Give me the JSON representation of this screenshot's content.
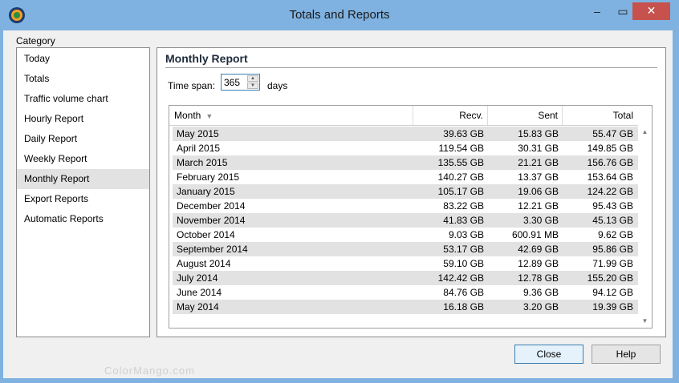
{
  "window": {
    "title": "Totals and Reports",
    "minimize": "–",
    "maximize": "▭",
    "close": "✕"
  },
  "category": {
    "label": "Category",
    "items": [
      {
        "label": "Today"
      },
      {
        "label": "Totals"
      },
      {
        "label": "Traffic volume chart"
      },
      {
        "label": "Hourly Report"
      },
      {
        "label": "Daily Report"
      },
      {
        "label": "Weekly Report"
      },
      {
        "label": "Monthly Report",
        "selected": true
      },
      {
        "label": "Export Reports"
      },
      {
        "label": "Automatic Reports"
      }
    ]
  },
  "report": {
    "title": "Monthly Report",
    "timespan_label": "Time span:",
    "timespan_value": "365",
    "timespan_unit": "days",
    "columns": {
      "month": "Month",
      "recv": "Recv.",
      "sent": "Sent",
      "total": "Total"
    },
    "rows": [
      {
        "month": "May 2015",
        "recv": "39.63 GB",
        "sent": "15.83 GB",
        "total": "55.47 GB"
      },
      {
        "month": "April 2015",
        "recv": "119.54 GB",
        "sent": "30.31 GB",
        "total": "149.85 GB"
      },
      {
        "month": "March 2015",
        "recv": "135.55 GB",
        "sent": "21.21 GB",
        "total": "156.76 GB"
      },
      {
        "month": "February 2015",
        "recv": "140.27 GB",
        "sent": "13.37 GB",
        "total": "153.64 GB"
      },
      {
        "month": "January 2015",
        "recv": "105.17 GB",
        "sent": "19.06 GB",
        "total": "124.22 GB"
      },
      {
        "month": "December 2014",
        "recv": "83.22 GB",
        "sent": "12.21 GB",
        "total": "95.43 GB"
      },
      {
        "month": "November 2014",
        "recv": "41.83 GB",
        "sent": "3.30 GB",
        "total": "45.13 GB"
      },
      {
        "month": "October 2014",
        "recv": "9.03 GB",
        "sent": "600.91 MB",
        "total": "9.62 GB"
      },
      {
        "month": "September 2014",
        "recv": "53.17 GB",
        "sent": "42.69 GB",
        "total": "95.86 GB"
      },
      {
        "month": "August 2014",
        "recv": "59.10 GB",
        "sent": "12.89 GB",
        "total": "71.99 GB"
      },
      {
        "month": "July 2014",
        "recv": "142.42 GB",
        "sent": "12.78 GB",
        "total": "155.20 GB"
      },
      {
        "month": "June 2014",
        "recv": "84.76 GB",
        "sent": "9.36 GB",
        "total": "94.12 GB"
      },
      {
        "month": "May 2014",
        "recv": "16.18 GB",
        "sent": "3.20 GB",
        "total": "19.39 GB"
      }
    ]
  },
  "buttons": {
    "close": "Close",
    "help": "Help"
  },
  "watermark": "ColorMango.com",
  "colors": {
    "title_bg": "#7fb2e0",
    "close_btn": "#c7514d",
    "selected_row": "#e2e2e2"
  }
}
